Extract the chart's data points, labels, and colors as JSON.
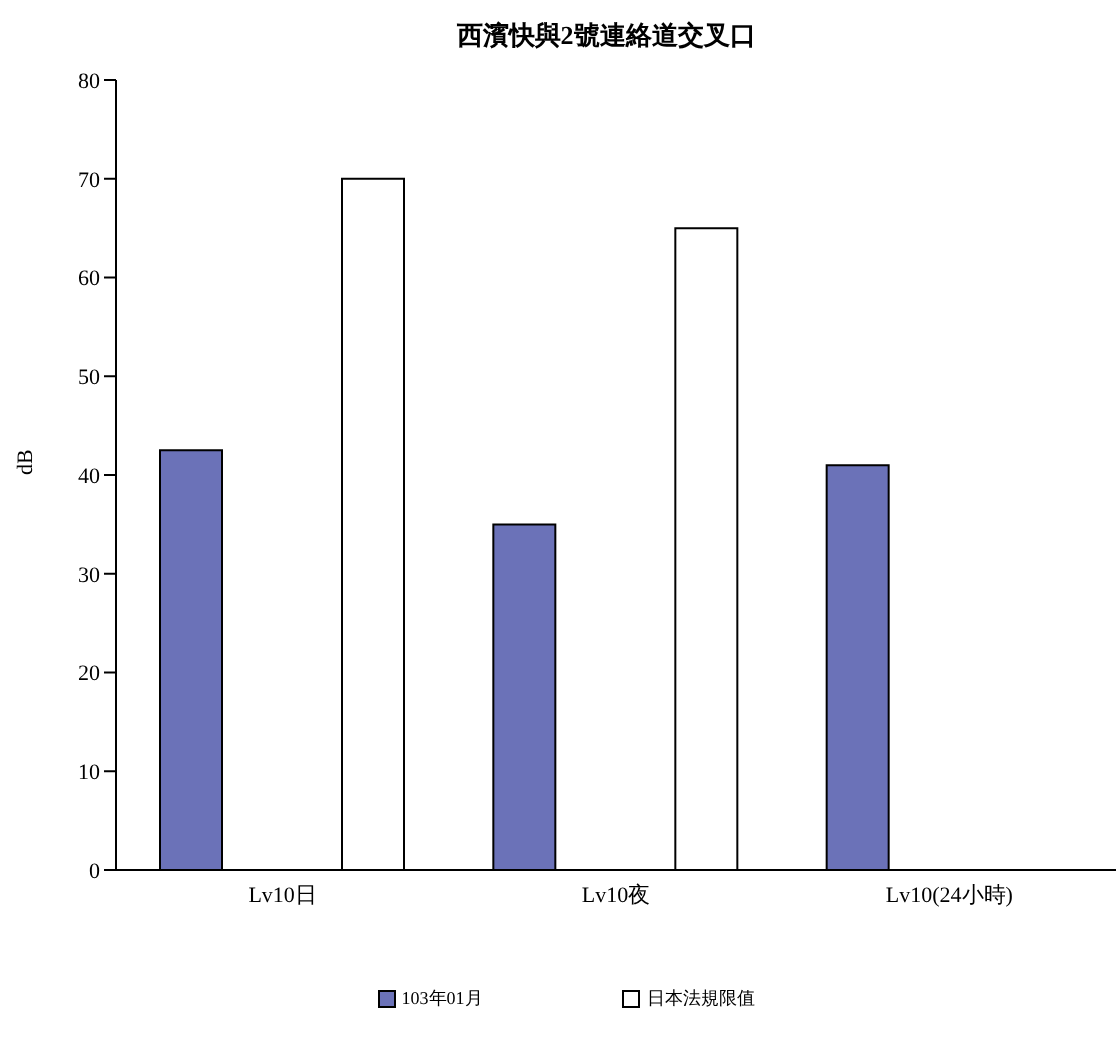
{
  "chart_data": {
    "type": "bar",
    "title": "西濱快與2號連絡道交叉口",
    "ylabel": "dB",
    "categories": [
      "Lv10日",
      "Lv10夜",
      "Lv10(24小時)"
    ],
    "series": [
      {
        "name": "103年01月",
        "color": "#6b72b8",
        "values": [
          42.5,
          35,
          41
        ]
      },
      {
        "name": "日本法規限值",
        "color": "#ffffff",
        "values": [
          70,
          65,
          null
        ]
      }
    ],
    "ylim": [
      0,
      80
    ],
    "yticks": [
      0,
      10,
      20,
      30,
      40,
      50,
      60,
      70,
      80
    ],
    "grid": false,
    "legend": "bottom"
  }
}
